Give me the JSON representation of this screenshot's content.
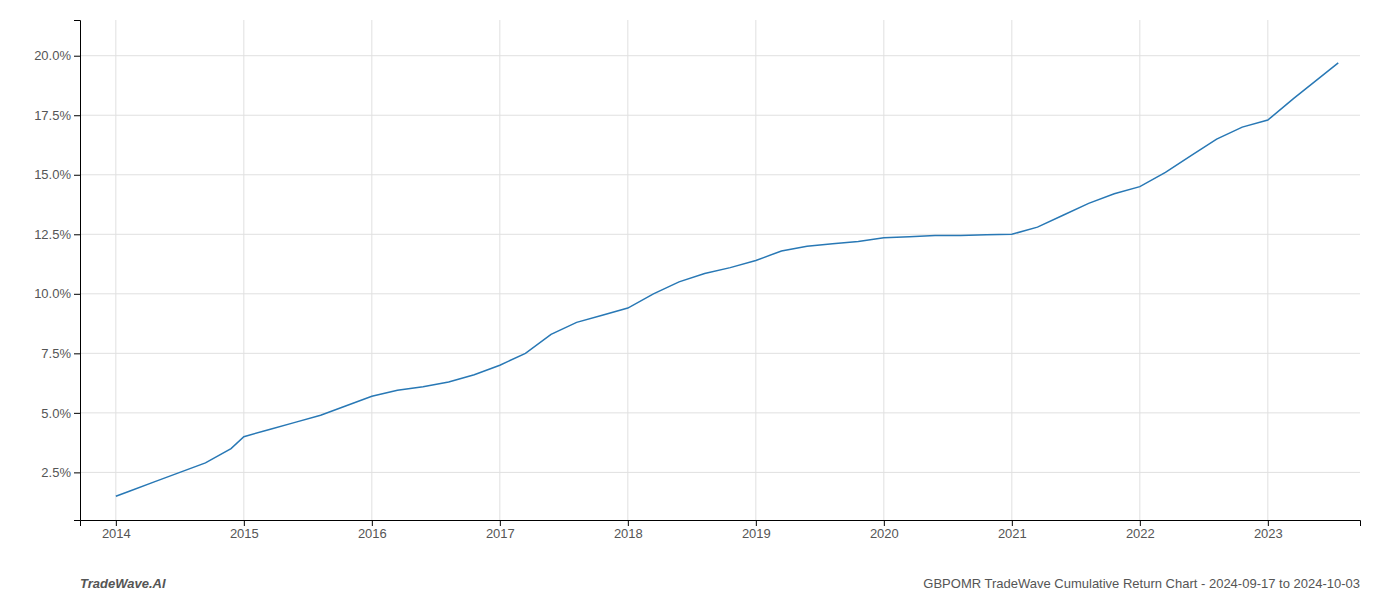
{
  "chart_data": {
    "type": "line",
    "x": [
      2014.0,
      2014.1,
      2014.3,
      2014.5,
      2014.7,
      2014.9,
      2015.0,
      2015.2,
      2015.4,
      2015.6,
      2015.8,
      2016.0,
      2016.2,
      2016.4,
      2016.6,
      2016.8,
      2017.0,
      2017.2,
      2017.4,
      2017.6,
      2017.8,
      2018.0,
      2018.2,
      2018.4,
      2018.6,
      2018.8,
      2019.0,
      2019.2,
      2019.4,
      2019.6,
      2019.8,
      2020.0,
      2020.2,
      2020.4,
      2020.6,
      2020.8,
      2021.0,
      2021.2,
      2021.4,
      2021.6,
      2021.8,
      2022.0,
      2022.2,
      2022.4,
      2022.6,
      2022.8,
      2023.0,
      2023.2,
      2023.55
    ],
    "values": [
      1.5,
      1.7,
      2.1,
      2.5,
      2.9,
      3.5,
      4.0,
      4.3,
      4.6,
      4.9,
      5.3,
      5.7,
      5.95,
      6.1,
      6.3,
      6.6,
      7.0,
      7.5,
      8.3,
      8.8,
      9.1,
      9.4,
      10.0,
      10.5,
      10.85,
      11.1,
      11.4,
      11.8,
      12.0,
      12.1,
      12.2,
      12.35,
      12.4,
      12.45,
      12.45,
      12.48,
      12.5,
      12.8,
      13.3,
      13.8,
      14.2,
      14.5,
      15.1,
      15.8,
      16.5,
      17.0,
      17.3,
      18.2,
      19.7
    ],
    "color": "#2878b5",
    "xlim": [
      2013.72,
      2023.72
    ],
    "ylim": [
      0.5,
      21.5
    ],
    "xticks": [
      2014,
      2015,
      2016,
      2017,
      2018,
      2019,
      2020,
      2021,
      2022,
      2023
    ],
    "yticks": [
      {
        "value": 2.5,
        "label": "2.5%"
      },
      {
        "value": 5.0,
        "label": "5.0%"
      },
      {
        "value": 7.5,
        "label": "7.5%"
      },
      {
        "value": 10.0,
        "label": "10.0%"
      },
      {
        "value": 12.5,
        "label": "12.5%"
      },
      {
        "value": 15.0,
        "label": "15.0%"
      },
      {
        "value": 17.5,
        "label": "17.5%"
      },
      {
        "value": 20.0,
        "label": "20.0%"
      }
    ],
    "grid": true,
    "annotations": [
      {
        "text": "TradeWave.AI"
      },
      {
        "text": "GBPOMR TradeWave Cumulative Return Chart - 2024-09-17 to 2024-10-03"
      }
    ]
  }
}
